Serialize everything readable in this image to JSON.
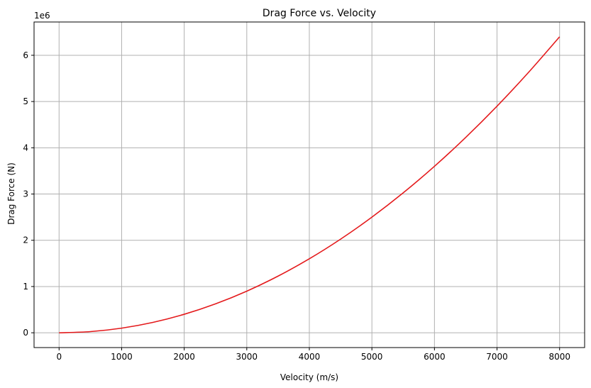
{
  "chart_data": {
    "type": "line",
    "title": "Drag Force vs. Velocity",
    "xlabel": "Velocity (m/s)",
    "ylabel": "Drag Force (N)",
    "y_offset_label": "1e6",
    "xlim": [
      -400,
      8400
    ],
    "ylim": [
      -0.32,
      6.72
    ],
    "y_scale_factor": 1000000,
    "x_ticks": [
      0,
      1000,
      2000,
      3000,
      4000,
      5000,
      6000,
      7000,
      8000
    ],
    "x_tick_labels": [
      "0",
      "1000",
      "2000",
      "3000",
      "4000",
      "5000",
      "6000",
      "7000",
      "8000"
    ],
    "y_ticks": [
      0,
      1,
      2,
      3,
      4,
      5,
      6
    ],
    "y_tick_labels": [
      "0",
      "1",
      "2",
      "3",
      "4",
      "5",
      "6"
    ],
    "grid": true,
    "series": [
      {
        "color": "#e41a1c",
        "x": [
          0,
          500,
          1000,
          1500,
          2000,
          2500,
          3000,
          3500,
          4000,
          4500,
          5000,
          5500,
          6000,
          6500,
          7000,
          7500,
          8000
        ],
        "y": [
          0,
          0.025,
          0.1,
          0.225,
          0.4,
          0.625,
          0.9,
          1.225,
          1.6,
          2.025,
          2.5,
          3.025,
          3.6,
          4.225,
          4.9,
          5.625,
          6.4
        ]
      }
    ]
  }
}
